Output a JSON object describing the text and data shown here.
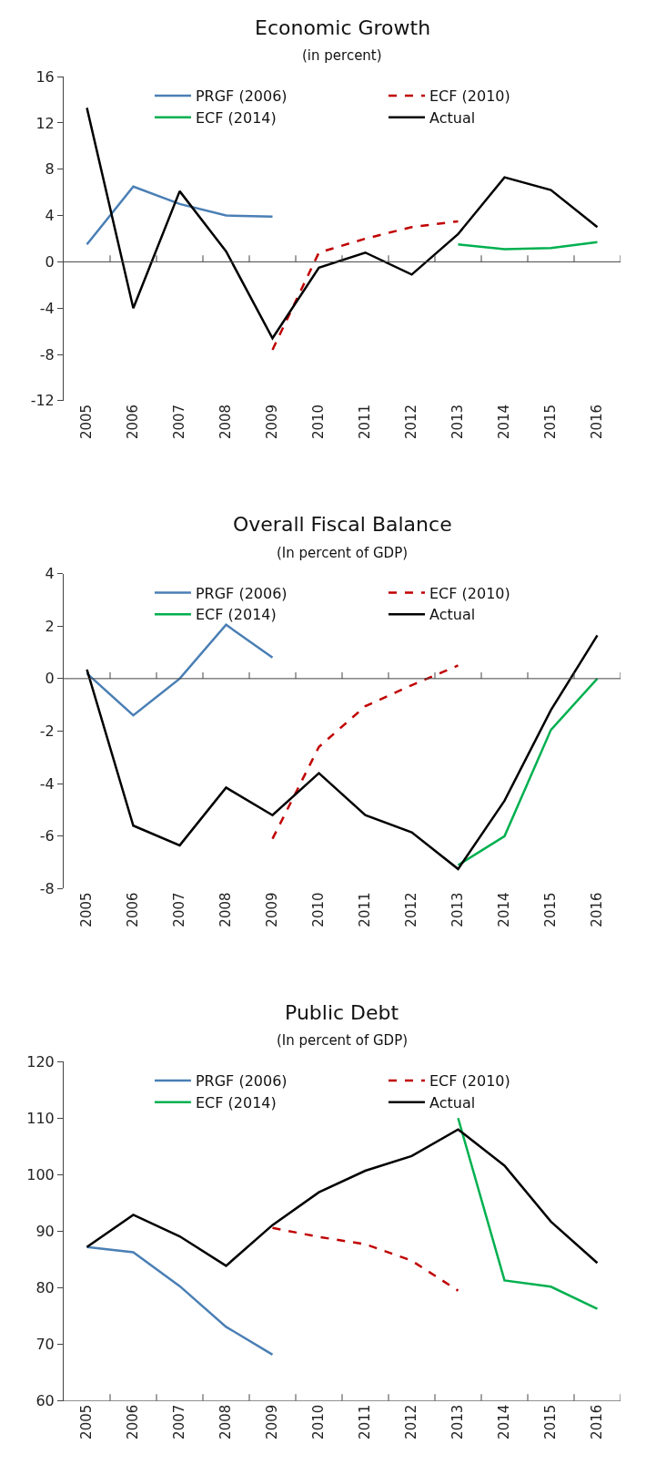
{
  "chart_data": [
    {
      "type": "line",
      "title": "Economic Growth",
      "subtitle": "(in percent)",
      "categories": [
        "2005",
        "2006",
        "2007",
        "2008",
        "2009",
        "2010",
        "2011",
        "2012",
        "2013",
        "2014",
        "2015",
        "2016"
      ],
      "ylim": [
        -12,
        16
      ],
      "yticks": [
        -12,
        -8,
        -4,
        0,
        4,
        8,
        12,
        16
      ],
      "legend": "top",
      "marker": "none",
      "series": [
        {
          "name": "PRGF (2006)",
          "color": "#4a7fb5",
          "line_style": "solid",
          "values": [
            1.5,
            6.5,
            5.0,
            4.0,
            3.9,
            null,
            null,
            null,
            null,
            null,
            null,
            null
          ]
        },
        {
          "name": "ECF (2010)",
          "color": "#c00000",
          "line_style": "dashed",
          "values": [
            null,
            null,
            null,
            null,
            -7.6,
            0.8,
            2.0,
            3.0,
            3.5,
            null,
            null,
            null
          ]
        },
        {
          "name": "ECF (2014)",
          "color": "#00b050",
          "line_style": "solid",
          "values": [
            null,
            null,
            null,
            null,
            null,
            null,
            null,
            null,
            1.5,
            1.1,
            1.2,
            1.7
          ]
        },
        {
          "name": "Actual",
          "color": "#000000",
          "line_style": "solid",
          "values": [
            13.3,
            -4.0,
            6.1,
            0.9,
            -6.6,
            -0.5,
            0.8,
            -1.1,
            2.4,
            7.3,
            6.2,
            3.0
          ]
        }
      ]
    },
    {
      "type": "line",
      "title": "Overall Fiscal Balance",
      "subtitle": "(In percent of GDP)",
      "categories": [
        "2005",
        "2006",
        "2007",
        "2008",
        "2009",
        "2010",
        "2011",
        "2012",
        "2013",
        "2014",
        "2015",
        "2016"
      ],
      "ylim": [
        -8,
        4
      ],
      "yticks": [
        -8,
        -6,
        -4,
        -2,
        0,
        2,
        4
      ],
      "legend": "top",
      "marker": "none",
      "series": [
        {
          "name": "PRGF (2006)",
          "color": "#4a7fb5",
          "line_style": "solid",
          "values": [
            0.2,
            -1.4,
            0.0,
            2.05,
            0.8,
            null,
            null,
            null,
            null,
            null,
            null,
            null
          ]
        },
        {
          "name": "ECF (2010)",
          "color": "#c00000",
          "line_style": "dashed",
          "values": [
            null,
            null,
            null,
            null,
            -6.1,
            -2.6,
            -1.05,
            -0.25,
            0.5,
            null,
            null,
            null
          ]
        },
        {
          "name": "ECF (2014)",
          "color": "#00b050",
          "line_style": "solid",
          "values": [
            null,
            null,
            null,
            null,
            null,
            null,
            null,
            null,
            -7.1,
            -6.0,
            -1.95,
            0.0
          ]
        },
        {
          "name": "Actual",
          "color": "#000000",
          "line_style": "solid",
          "values": [
            0.35,
            -5.6,
            -6.35,
            -4.15,
            -5.2,
            -3.6,
            -5.2,
            -5.85,
            -7.25,
            -4.65,
            -1.2,
            1.65
          ]
        }
      ]
    },
    {
      "type": "line",
      "title": "Public Debt",
      "subtitle": "(In percent of GDP)",
      "categories": [
        "2005",
        "2006",
        "2007",
        "2008",
        "2009",
        "2010",
        "2011",
        "2012",
        "2013",
        "2014",
        "2015",
        "2016"
      ],
      "ylim": [
        60,
        120
      ],
      "yticks": [
        60,
        70,
        80,
        90,
        100,
        110,
        120
      ],
      "legend": "top",
      "marker": "none",
      "series": [
        {
          "name": "PRGF (2006)",
          "color": "#4a7fb5",
          "line_style": "solid",
          "values": [
            87.2,
            86.3,
            80.3,
            73.1,
            68.2,
            null,
            null,
            null,
            null,
            null,
            null,
            null
          ]
        },
        {
          "name": "ECF (2010)",
          "color": "#c00000",
          "line_style": "dashed",
          "values": [
            null,
            null,
            null,
            null,
            90.6,
            89.0,
            87.7,
            84.8,
            79.5,
            null,
            null,
            null
          ]
        },
        {
          "name": "ECF (2014)",
          "color": "#00b050",
          "line_style": "solid",
          "values": [
            null,
            null,
            null,
            null,
            null,
            null,
            null,
            null,
            110.0,
            81.3,
            80.2,
            76.3
          ]
        },
        {
          "name": "Actual",
          "color": "#000000",
          "line_style": "solid",
          "values": [
            87.2,
            92.9,
            89.1,
            83.9,
            91.1,
            96.9,
            100.7,
            103.3,
            108.0,
            101.6,
            91.7,
            84.4
          ]
        }
      ]
    }
  ]
}
